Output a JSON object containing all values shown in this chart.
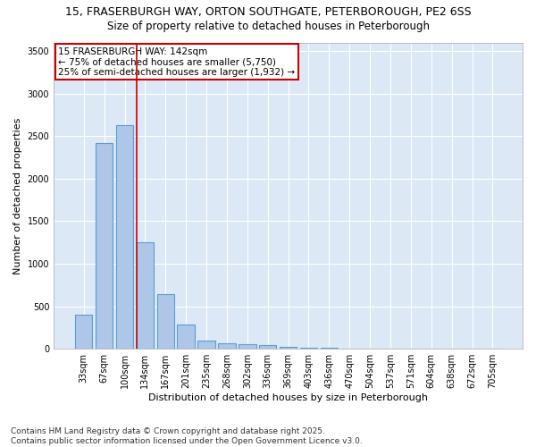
{
  "title_line1": "15, FRASERBURGH WAY, ORTON SOUTHGATE, PETERBOROUGH, PE2 6SS",
  "title_line2": "Size of property relative to detached houses in Peterborough",
  "xlabel": "Distribution of detached houses by size in Peterborough",
  "ylabel": "Number of detached properties",
  "categories": [
    "33sqm",
    "67sqm",
    "100sqm",
    "134sqm",
    "167sqm",
    "201sqm",
    "235sqm",
    "268sqm",
    "302sqm",
    "336sqm",
    "369sqm",
    "403sqm",
    "436sqm",
    "470sqm",
    "504sqm",
    "537sqm",
    "571sqm",
    "604sqm",
    "638sqm",
    "672sqm",
    "705sqm"
  ],
  "values": [
    400,
    2420,
    2630,
    1250,
    640,
    285,
    100,
    65,
    55,
    40,
    25,
    15,
    10,
    5,
    2,
    1,
    0,
    0,
    0,
    0,
    0
  ],
  "bar_color": "#aec6e8",
  "bar_edge_color": "#5b9bd5",
  "vline_color": "#cc0000",
  "annotation_text": "15 FRASERBURGH WAY: 142sqm\n← 75% of detached houses are smaller (5,750)\n25% of semi-detached houses are larger (1,932) →",
  "annotation_box_color": "#cc0000",
  "ylim": [
    0,
    3600
  ],
  "yticks": [
    0,
    500,
    1000,
    1500,
    2000,
    2500,
    3000,
    3500
  ],
  "background_color": "#dce8f5",
  "grid_color": "#ffffff",
  "fig_background": "#ffffff",
  "footer_line1": "Contains HM Land Registry data © Crown copyright and database right 2025.",
  "footer_line2": "Contains public sector information licensed under the Open Government Licence v3.0.",
  "title_fontsize": 9,
  "subtitle_fontsize": 8.5,
  "axis_label_fontsize": 8,
  "tick_fontsize": 7,
  "annotation_fontsize": 7.5,
  "footer_fontsize": 6.5,
  "vline_xindex": 3
}
